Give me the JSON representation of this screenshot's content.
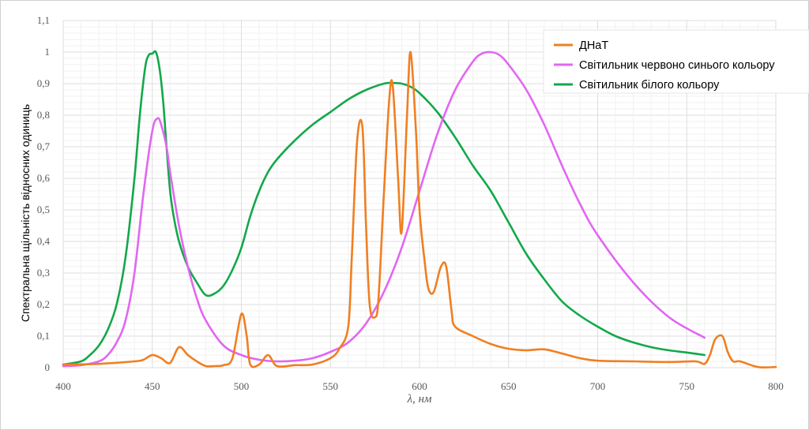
{
  "chart_data": {
    "type": "line",
    "xlabel": "λ, нм",
    "ylabel": "Спектральна щільність відносних одиниць",
    "xlim": [
      400,
      800
    ],
    "ylim": [
      0,
      1.1
    ],
    "x_ticks": [
      "400",
      "450",
      "500",
      "550",
      "600",
      "650",
      "700",
      "750",
      "800"
    ],
    "y_ticks": [
      "0",
      "0,1",
      "0,2",
      "0,3",
      "0,4",
      "0,5",
      "0,6",
      "0,7",
      "0,8",
      "0,9",
      "1",
      "1,1"
    ],
    "grid": true,
    "legend_position": "top-right",
    "series": [
      {
        "name": "ДНаТ",
        "color": "#f07f21",
        "x": [
          400,
          420,
          440,
          445,
          450,
          455,
          460,
          465,
          470,
          475,
          480,
          485,
          490,
          495,
          500,
          503,
          505,
          510,
          515,
          520,
          530,
          540,
          550,
          555,
          560,
          562,
          565,
          568,
          570,
          572,
          575,
          577,
          580,
          583,
          585,
          588,
          590,
          593,
          595,
          598,
          600,
          603,
          605,
          608,
          612,
          615,
          618,
          620,
          630,
          640,
          650,
          660,
          670,
          680,
          690,
          700,
          720,
          740,
          755,
          760,
          763,
          766,
          770,
          773,
          776,
          780,
          790,
          800
        ],
        "y": [
          0.01,
          0.012,
          0.02,
          0.025,
          0.04,
          0.03,
          0.015,
          0.065,
          0.04,
          0.02,
          0.005,
          0.005,
          0.008,
          0.03,
          0.17,
          0.1,
          0.01,
          0.01,
          0.04,
          0.005,
          0.008,
          0.01,
          0.03,
          0.06,
          0.13,
          0.35,
          0.72,
          0.76,
          0.45,
          0.2,
          0.16,
          0.22,
          0.55,
          0.85,
          0.89,
          0.6,
          0.43,
          0.8,
          1.0,
          0.75,
          0.5,
          0.33,
          0.25,
          0.24,
          0.32,
          0.32,
          0.18,
          0.13,
          0.1,
          0.075,
          0.06,
          0.055,
          0.058,
          0.045,
          0.03,
          0.022,
          0.02,
          0.018,
          0.02,
          0.012,
          0.04,
          0.09,
          0.1,
          0.05,
          0.02,
          0.02,
          0.002,
          0.002
        ]
      },
      {
        "name": "Світильник червоно синього кольору",
        "color": "#e266f2",
        "x": [
          400,
          410,
          420,
          425,
          430,
          435,
          440,
          445,
          450,
          453,
          455,
          458,
          460,
          465,
          470,
          475,
          480,
          490,
          500,
          510,
          520,
          530,
          540,
          550,
          560,
          570,
          580,
          590,
          600,
          610,
          620,
          630,
          635,
          640,
          645,
          650,
          660,
          670,
          680,
          690,
          700,
          720,
          740,
          760
        ],
        "y": [
          0.005,
          0.008,
          0.02,
          0.04,
          0.08,
          0.15,
          0.3,
          0.55,
          0.75,
          0.79,
          0.77,
          0.7,
          0.62,
          0.45,
          0.32,
          0.22,
          0.15,
          0.07,
          0.04,
          0.025,
          0.02,
          0.022,
          0.03,
          0.05,
          0.08,
          0.14,
          0.24,
          0.38,
          0.56,
          0.74,
          0.88,
          0.97,
          0.995,
          1.0,
          0.99,
          0.96,
          0.88,
          0.77,
          0.64,
          0.52,
          0.42,
          0.27,
          0.16,
          0.095
        ]
      },
      {
        "name": "Світильник білого кольору",
        "color": "#13a84a",
        "x": [
          400,
          410,
          415,
          420,
          425,
          430,
          435,
          440,
          443,
          446,
          448,
          450,
          452,
          454,
          456,
          458,
          460,
          462,
          465,
          470,
          475,
          480,
          485,
          490,
          495,
          500,
          505,
          510,
          515,
          520,
          530,
          540,
          550,
          560,
          570,
          580,
          585,
          590,
          595,
          600,
          610,
          620,
          630,
          640,
          650,
          660,
          670,
          680,
          690,
          700,
          710,
          720,
          730,
          740,
          750,
          760
        ],
        "y": [
          0.01,
          0.02,
          0.04,
          0.07,
          0.12,
          0.2,
          0.35,
          0.6,
          0.8,
          0.95,
          0.99,
          0.995,
          1.0,
          0.95,
          0.85,
          0.7,
          0.56,
          0.48,
          0.4,
          0.32,
          0.27,
          0.23,
          0.235,
          0.26,
          0.31,
          0.38,
          0.48,
          0.56,
          0.62,
          0.66,
          0.72,
          0.77,
          0.81,
          0.85,
          0.88,
          0.9,
          0.902,
          0.9,
          0.89,
          0.87,
          0.81,
          0.73,
          0.64,
          0.56,
          0.46,
          0.36,
          0.28,
          0.21,
          0.165,
          0.13,
          0.1,
          0.08,
          0.065,
          0.055,
          0.048,
          0.04
        ]
      }
    ]
  }
}
